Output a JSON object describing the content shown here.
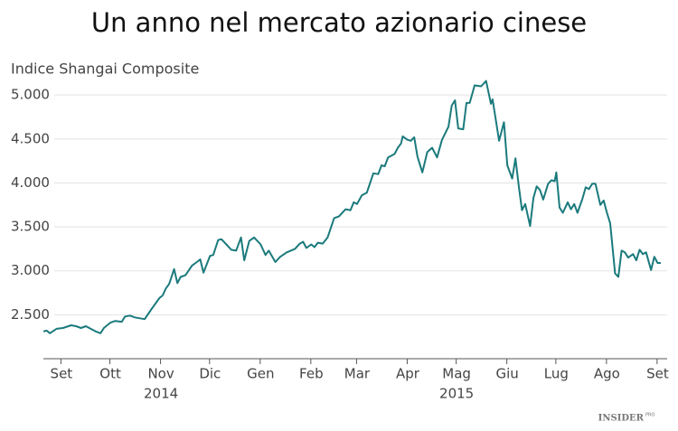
{
  "chart_data": {
    "type": "line",
    "title": "Un anno nel mercato azionario cinese",
    "ylabel": "Indice Shangai Composite",
    "x": [
      -11,
      -9,
      -7,
      -3,
      1,
      6,
      9,
      12,
      15,
      18,
      21,
      24,
      26,
      30,
      33,
      37,
      39,
      42,
      45,
      51,
      55,
      60,
      62,
      64,
      66,
      69,
      71,
      73,
      76,
      80,
      83,
      85,
      87,
      91,
      93,
      96,
      98,
      101,
      104,
      107,
      110,
      112,
      115,
      118,
      122,
      125,
      127,
      131,
      134,
      138,
      143,
      146,
      148,
      150,
      153,
      155,
      157,
      160,
      163,
      167,
      170,
      174,
      177,
      179,
      181,
      184,
      187,
      189,
      191,
      194,
      196,
      198,
      200,
      204,
      206,
      208,
      209,
      212,
      214,
      216,
      218,
      221,
      224,
      227,
      230,
      233,
      237,
      239,
      241,
      243,
      246,
      248,
      250,
      253,
      257,
      260,
      263,
      264,
      268,
      271,
      273,
      276,
      278,
      280,
      282,
      284,
      287,
      289,
      291,
      293,
      295,
      298,
      300,
      302,
      303,
      305,
      307,
      310,
      312,
      314,
      316,
      319,
      321,
      323,
      325,
      327,
      330,
      332,
      334,
      336,
      339,
      341,
      343,
      345,
      347,
      350,
      352,
      354,
      356,
      358,
      361,
      363,
      365,
      367
    ],
    "series": [
      {
        "name": "Indice Shangai Composite",
        "color": "#1b7a7c",
        "values": [
          2310,
          2320,
          2290,
          2340,
          2350,
          2380,
          2370,
          2350,
          2370,
          2340,
          2310,
          2290,
          2350,
          2410,
          2430,
          2420,
          2480,
          2490,
          2470,
          2450,
          2560,
          2690,
          2720,
          2800,
          2850,
          3020,
          2860,
          2930,
          2950,
          3060,
          3100,
          3130,
          2980,
          3170,
          3180,
          3350,
          3360,
          3300,
          3240,
          3230,
          3380,
          3120,
          3340,
          3380,
          3300,
          3180,
          3230,
          3100,
          3160,
          3210,
          3250,
          3310,
          3330,
          3260,
          3300,
          3270,
          3320,
          3310,
          3380,
          3600,
          3620,
          3700,
          3690,
          3780,
          3760,
          3860,
          3890,
          4000,
          4110,
          4100,
          4200,
          4190,
          4290,
          4330,
          4400,
          4450,
          4530,
          4490,
          4480,
          4520,
          4300,
          4120,
          4350,
          4400,
          4290,
          4490,
          4640,
          4880,
          4940,
          4620,
          4610,
          4910,
          4910,
          5110,
          5100,
          5160,
          4900,
          4950,
          4480,
          4690,
          4200,
          4050,
          4280,
          3970,
          3690,
          3760,
          3510,
          3830,
          3960,
          3920,
          3810,
          3990,
          4030,
          4020,
          4120,
          3720,
          3660,
          3780,
          3700,
          3760,
          3660,
          3820,
          3950,
          3930,
          3990,
          3990,
          3750,
          3800,
          3660,
          3540,
          2970,
          2930,
          3230,
          3210,
          3150,
          3190,
          3120,
          3240,
          3190,
          3210,
          3010,
          3160,
          3090,
          3090
        ]
      }
    ],
    "xlim": [
      -11,
      367
    ],
    "xticks": [
      {
        "value": 0,
        "label": "Set"
      },
      {
        "value": 30,
        "label": "Ott"
      },
      {
        "value": 61,
        "label": "Nov"
      },
      {
        "value": 91,
        "label": "Dic"
      },
      {
        "value": 122,
        "label": "Gen"
      },
      {
        "value": 153,
        "label": "Feb"
      },
      {
        "value": 181,
        "label": "Mar"
      },
      {
        "value": 212,
        "label": "Apr"
      },
      {
        "value": 242,
        "label": "Mag"
      },
      {
        "value": 273,
        "label": "Giu"
      },
      {
        "value": 303,
        "label": "Lug"
      },
      {
        "value": 334,
        "label": "Ago"
      },
      {
        "value": 365,
        "label": "Set"
      }
    ],
    "year_labels": [
      {
        "value": 61,
        "label": "2014"
      },
      {
        "value": 242,
        "label": "2015"
      }
    ],
    "ylim": [
      2000,
      5300
    ],
    "yticks": [
      {
        "value": 2500,
        "label": "2.500"
      },
      {
        "value": 3000,
        "label": "3.000"
      },
      {
        "value": 3500,
        "label": "3.500"
      },
      {
        "value": 4000,
        "label": "4.000"
      },
      {
        "value": 4500,
        "label": "4.500"
      },
      {
        "value": 5000,
        "label": "5.000"
      }
    ],
    "grid": true,
    "source": "INSIDER",
    "source_sub": "PRO"
  }
}
